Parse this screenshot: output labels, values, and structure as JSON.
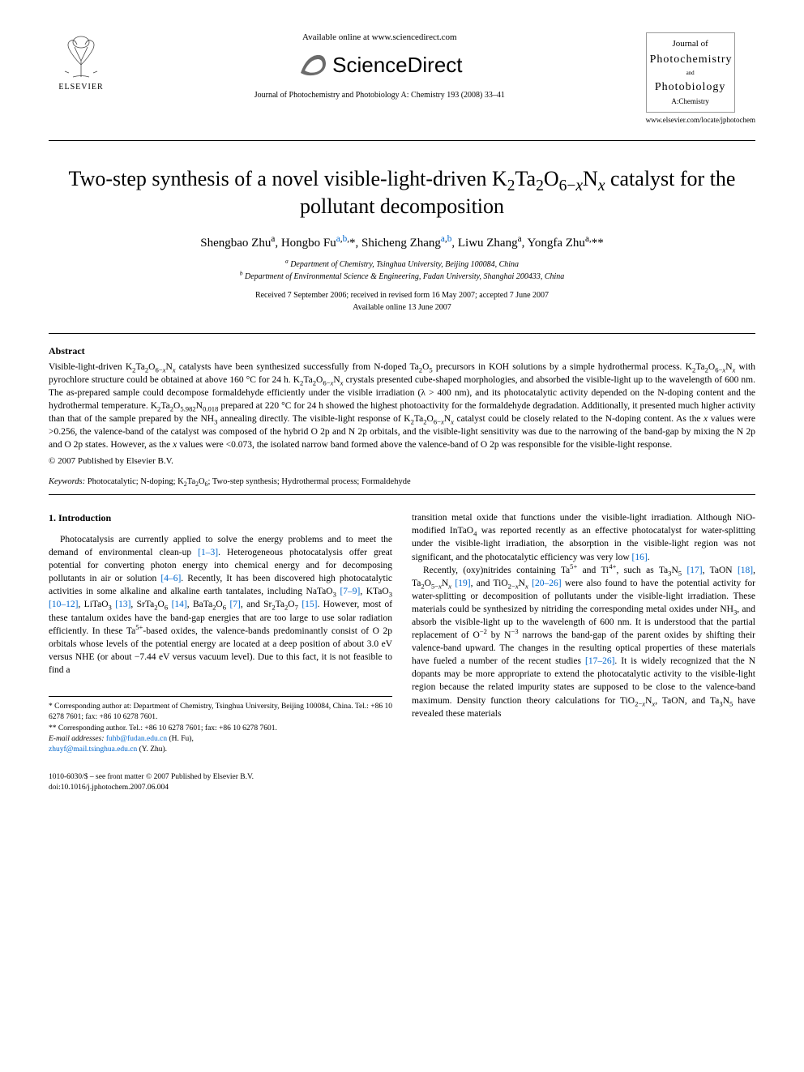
{
  "header": {
    "elsevier_label": "ELSEVIER",
    "available_text": "Available online at www.sciencedirect.com",
    "sd_brand": "ScienceDirect",
    "journal_citation": "Journal of Photochemistry and Photobiology A: Chemistry 193 (2008) 33–41",
    "journal_url": "www.elsevier.com/locate/jphotochem",
    "cover": {
      "l1": "Journal of",
      "l2": "Photochemistry",
      "l3": "and",
      "l4": "Photobiology",
      "l5": "A:Chemistry"
    }
  },
  "title_html": "Two-step synthesis of a novel visible-light-driven K<sub>2</sub>Ta<sub>2</sub>O<sub>6−<i>x</i></sub>N<sub><i>x</i></sub> catalyst for the pollutant decomposition",
  "authors_html": "Shengbao Zhu<sup>a</sup>, Hongbo Fu<sup><a href=\"#\" class=\"ref-link\">a</a>,<a href=\"#\" class=\"ref-link\">b</a>,</sup>*, Shicheng Zhang<sup><a href=\"#\" class=\"ref-link\">a</a>,<a href=\"#\" class=\"ref-link\">b</a></sup>, Liwu Zhang<sup>a</sup>, Yongfa Zhu<sup>a,</sup>**",
  "affiliations": {
    "a": "Department of Chemistry, Tsinghua University, Beijing 100084, China",
    "b": "Department of Environmental Science & Engineering, Fudan University, Shanghai 200433, China"
  },
  "dates": {
    "received": "Received 7 September 2006; received in revised form 16 May 2007; accepted 7 June 2007",
    "online": "Available online 13 June 2007"
  },
  "abstract": {
    "heading": "Abstract",
    "body_html": "Visible-light-driven K<sub>2</sub>Ta<sub>2</sub>O<sub>6−<i>x</i></sub>N<sub><i>x</i></sub> catalysts have been synthesized successfully from N-doped Ta<sub>2</sub>O<sub>5</sub> precursors in KOH solutions by a simple hydrothermal process. K<sub>2</sub>Ta<sub>2</sub>O<sub>6−<i>x</i></sub>N<sub><i>x</i></sub> with pyrochlore structure could be obtained at above 160 °C for 24 h. K<sub>2</sub>Ta<sub>2</sub>O<sub>6−<i>x</i></sub>N<sub><i>x</i></sub> crystals presented cube-shaped morphologies, and absorbed the visible-light up to the wavelength of 600 nm. The as-prepared sample could decompose formaldehyde efficiently under the visible irradiation (λ > 400 nm), and its photocatalytic activity depended on the N-doping content and the hydrothermal temperature. K<sub>2</sub>Ta<sub>2</sub>O<sub>5.982</sub>N<sub>0.018</sub> prepared at 220 °C for 24 h showed the highest photoactivity for the formaldehyde degradation. Additionally, it presented much higher activity than that of the sample prepared by the NH<sub>3</sub> annealing directly. The visible-light response of K<sub>2</sub>Ta<sub>2</sub>O<sub>6−<i>x</i></sub>N<sub><i>x</i></sub> catalyst could be closely related to the N-doping content. As the <i>x</i> values were &gt;0.256, the valence-band of the catalyst was composed of the hybrid O 2p and N 2p orbitals, and the visible-light sensitivity was due to the narrowing of the band-gap by mixing the N 2p and O 2p states. However, as the <i>x</i> values were &lt;0.073, the isolated narrow band formed above the valence-band of O 2p was responsible for the visible-light response.",
    "copyright": "© 2007 Published by Elsevier B.V."
  },
  "keywords": {
    "label": "Keywords:",
    "list_html": "Photocatalytic; N-doping; K<sub>2</sub>Ta<sub>2</sub>O<sub>6</sub>; Two-step synthesis; Hydrothermal process; Formaldehyde"
  },
  "section1": {
    "heading": "1. Introduction",
    "col1_html": "Photocatalysis are currently applied to solve the energy problems and to meet the demand of environmental clean-up <a href=\"#\" class=\"ref-link\">[1–3]</a>. Heterogeneous photocatalysis offer great potential for converting photon energy into chemical energy and for decomposing pollutants in air or solution <a href=\"#\" class=\"ref-link\">[4–6]</a>. Recently, It has been discovered high photocatalytic activities in some alkaline and alkaline earth tantalates, including NaTaO<sub>3</sub> <a href=\"#\" class=\"ref-link\">[7–9]</a>, KTaO<sub>3</sub> <a href=\"#\" class=\"ref-link\">[10–12]</a>, LiTaO<sub>3</sub> <a href=\"#\" class=\"ref-link\">[13]</a>, SrTa<sub>2</sub>O<sub>6</sub> <a href=\"#\" class=\"ref-link\">[14]</a>, BaTa<sub>2</sub>O<sub>6</sub> <a href=\"#\" class=\"ref-link\">[7]</a>, and Sr<sub>2</sub>Ta<sub>2</sub>O<sub>7</sub> <a href=\"#\" class=\"ref-link\">[15]</a>. However, most of these tantalum oxides have the band-gap energies that are too large to use solar radiation efficiently. In these Ta<sup>5+</sup>-based oxides, the valence-bands predominantly consist of O 2p orbitals whose levels of the potential energy are located at a deep position of about 3.0 eV versus NHE (or about −7.44 eV versus vacuum level). Due to this fact, it is not feasible to find a",
    "col2_p1_html": "transition metal oxide that functions under the visible-light irradiation. Although NiO-modified InTaO<sub>4</sub> was reported recently as an effective photocatalyst for water-splitting under the visible-light irradiation, the absorption in the visible-light region was not significant, and the photocatalytic efficiency was very low <a href=\"#\" class=\"ref-link\">[16]</a>.",
    "col2_p2_html": "Recently, (oxy)nitrides containing Ta<sup>5+</sup> and Ti<sup>4+</sup>, such as Ta<sub>3</sub>N<sub>5</sub> <a href=\"#\" class=\"ref-link\">[17]</a>, TaON <a href=\"#\" class=\"ref-link\">[18]</a>, Ta<sub>2</sub>O<sub>5−<i>x</i></sub>N<sub><i>x</i></sub> <a href=\"#\" class=\"ref-link\">[19]</a>, and TiO<sub>2−<i>x</i></sub>N<sub><i>x</i></sub> <a href=\"#\" class=\"ref-link\">[20–26]</a> were also found to have the potential activity for water-splitting or decomposition of pollutants under the visible-light irradiation. These materials could be synthesized by nitriding the corresponding metal oxides under NH<sub>3</sub>, and absorb the visible-light up to the wavelength of 600 nm. It is understood that the partial replacement of O<sup>−2</sup> by N<sup>−3</sup> narrows the band-gap of the parent oxides by shifting their valence-band upward. The changes in the resulting optical properties of these materials have fueled a number of the recent studies <a href=\"#\" class=\"ref-link\">[17–26]</a>. It is widely recognized that the N dopants may be more appropriate to extend the photocatalytic activity to the visible-light region because the related impurity states are supposed to be close to the valence-band maximum. Density function theory calculations for TiO<sub>2−<i>x</i></sub>N<sub><i>x</i></sub>, TaON, and Ta<sub>3</sub>N<sub>5</sub> have revealed these materials"
  },
  "footnotes": {
    "f1": "* Corresponding author at: Department of Chemistry, Tsinghua University, Beijing 100084, China. Tel.: +86 10 6278 7601; fax: +86 10 6278 7601.",
    "f2": "** Corresponding author. Tel.: +86 10 6278 7601; fax: +86 10 6278 7601.",
    "email_label": "E-mail addresses:",
    "email1": "fuhb@fudan.edu.cn",
    "email1_name": "(H. Fu),",
    "email2": "zhuyf@mail.tsinghua.edu.cn",
    "email2_name": "(Y. Zhu)."
  },
  "footer": {
    "line1": "1010-6030/$ – see front matter © 2007 Published by Elsevier B.V.",
    "line2": "doi:10.1016/j.jphotochem.2007.06.004"
  },
  "colors": {
    "link": "#0066cc",
    "text": "#000000",
    "border": "#999999"
  }
}
